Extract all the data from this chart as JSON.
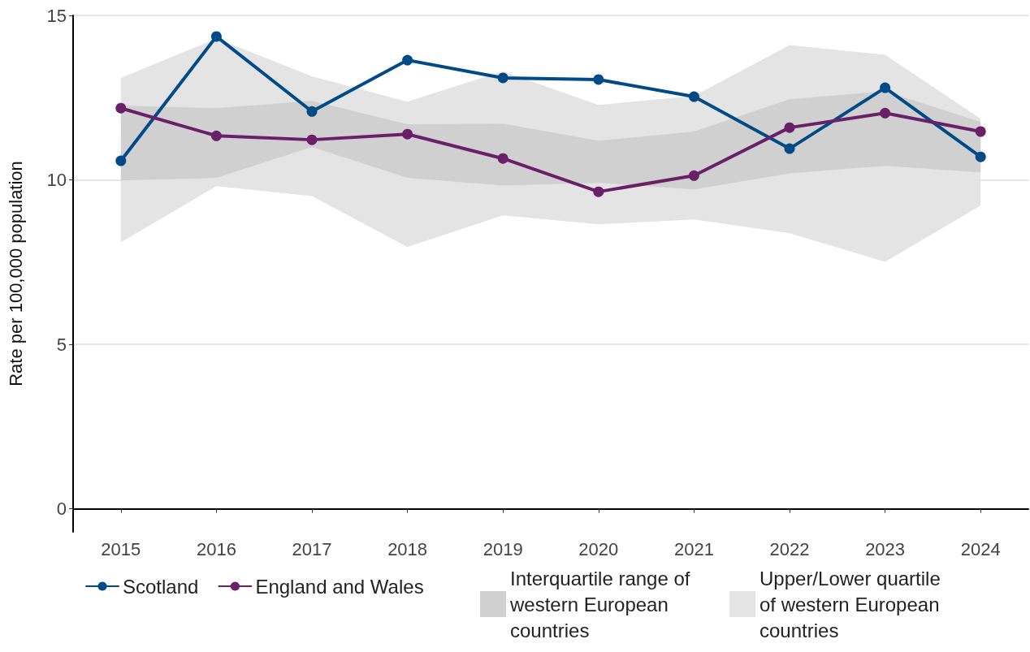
{
  "chart_data": {
    "type": "line",
    "ylabel": "Rate per 100,000 population",
    "categories": [
      "2015",
      "2016",
      "2017",
      "2018",
      "2019",
      "2020",
      "2021",
      "2022",
      "2023",
      "2024"
    ],
    "series": [
      {
        "name": "Scotland",
        "color": "#004a87",
        "values": [
          10.58,
          14.36,
          12.08,
          13.64,
          13.1,
          13.05,
          12.53,
          10.95,
          12.8,
          10.7
        ]
      },
      {
        "name": "England and Wales",
        "color": "#6a2068",
        "values": [
          12.18,
          11.34,
          11.22,
          11.39,
          10.65,
          9.64,
          10.13,
          11.59,
          12.03,
          11.47
        ]
      },
      {
        "type": "area",
        "marker": "none",
        "name": "Interquartile range of western European countries",
        "color": "#d0d0d0",
        "values": [
          null,
          null,
          null,
          null,
          null,
          null,
          null,
          null,
          null,
          null
        ],
        "lower": [
          9.98,
          10.06,
          11.0,
          10.06,
          9.83,
          9.91,
          9.71,
          10.2,
          10.43,
          10.23
        ],
        "upper": [
          12.26,
          12.18,
          12.4,
          11.69,
          11.71,
          11.19,
          11.47,
          12.45,
          12.7,
          11.76
        ]
      },
      {
        "type": "area",
        "marker": "none",
        "name": "Upper/Lower quartile of western European countries",
        "color": "#e4e4e4",
        "values": [
          null,
          null,
          null,
          null,
          null,
          null,
          null,
          null,
          null,
          null
        ],
        "lower": [
          8.1,
          9.81,
          9.51,
          7.96,
          8.92,
          8.65,
          8.8,
          8.38,
          7.51,
          9.22
        ],
        "upper": [
          13.1,
          14.3,
          13.15,
          12.38,
          13.3,
          12.28,
          12.55,
          14.1,
          13.8,
          11.86
        ]
      }
    ],
    "ylim": [
      -0.7,
      15
    ],
    "yticks": [
      0,
      5,
      10,
      15
    ],
    "grid": "y",
    "legend": "bottom",
    "marker": "circle",
    "line_style": "solid"
  }
}
